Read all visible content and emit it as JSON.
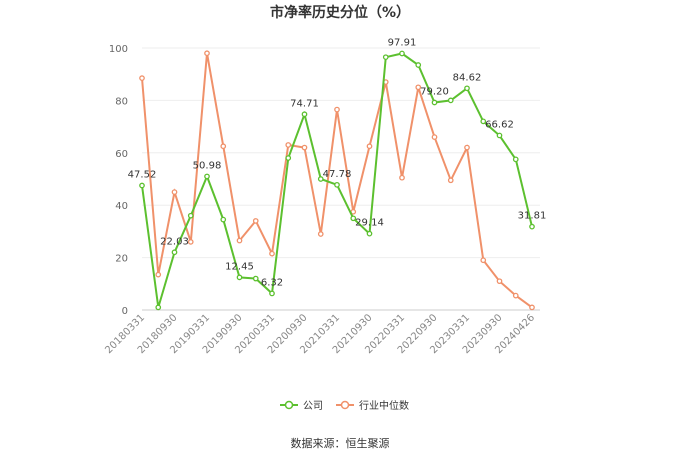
{
  "chart_data": {
    "type": "line",
    "title": "市净率历史分位（%）",
    "ylim": [
      0,
      100
    ],
    "yticks": [
      0,
      20,
      40,
      60,
      80,
      100
    ],
    "grid": true,
    "legend_position": "bottom",
    "x_tick_labels": [
      "20180331",
      "20180930",
      "20190331",
      "20190930",
      "20200331",
      "20200930",
      "20210331",
      "20210930",
      "20220331",
      "20220930",
      "20230331",
      "20230930",
      "20240426"
    ],
    "x": [
      "20180331",
      "20180630",
      "20180930",
      "20181231",
      "20190331",
      "20190630",
      "20190930",
      "20191231",
      "20200331",
      "20200630",
      "20200930",
      "20201231",
      "20210331",
      "20210630",
      "20210930",
      "20211231",
      "20220331",
      "20220630",
      "20220930",
      "20221231",
      "20230331",
      "20230630",
      "20230930",
      "20231231",
      "20240426"
    ],
    "series": [
      {
        "name": "公司",
        "color": "#5cc02f",
        "values": [
          47.52,
          1.0,
          22.03,
          36.0,
          50.98,
          34.5,
          12.45,
          12.0,
          6.32,
          58.0,
          74.71,
          50.0,
          47.78,
          35.0,
          29.14,
          96.5,
          97.91,
          93.5,
          79.2,
          80.0,
          84.62,
          72.0,
          66.62,
          57.5,
          31.81
        ],
        "labels": {
          "0": "47.52",
          "2": "22.03",
          "4": "50.98",
          "6": "12.45",
          "8": "6.32",
          "10": "74.71",
          "12": "47.78",
          "14": "29.14",
          "16": "97.91",
          "18": "79.20",
          "20": "84.62",
          "22": "66.62",
          "24": "31.81"
        }
      },
      {
        "name": "行业中位数",
        "color": "#f0916a",
        "values": [
          88.5,
          13.5,
          45.0,
          26.0,
          98.0,
          62.5,
          26.5,
          34.0,
          21.5,
          63.0,
          62.0,
          29.0,
          76.5,
          37.5,
          62.5,
          87.0,
          50.5,
          85.0,
          66.0,
          49.5,
          62.0,
          19.0,
          11.0,
          5.5,
          1.0
        ]
      }
    ]
  },
  "source": "数据来源：恒生聚源"
}
